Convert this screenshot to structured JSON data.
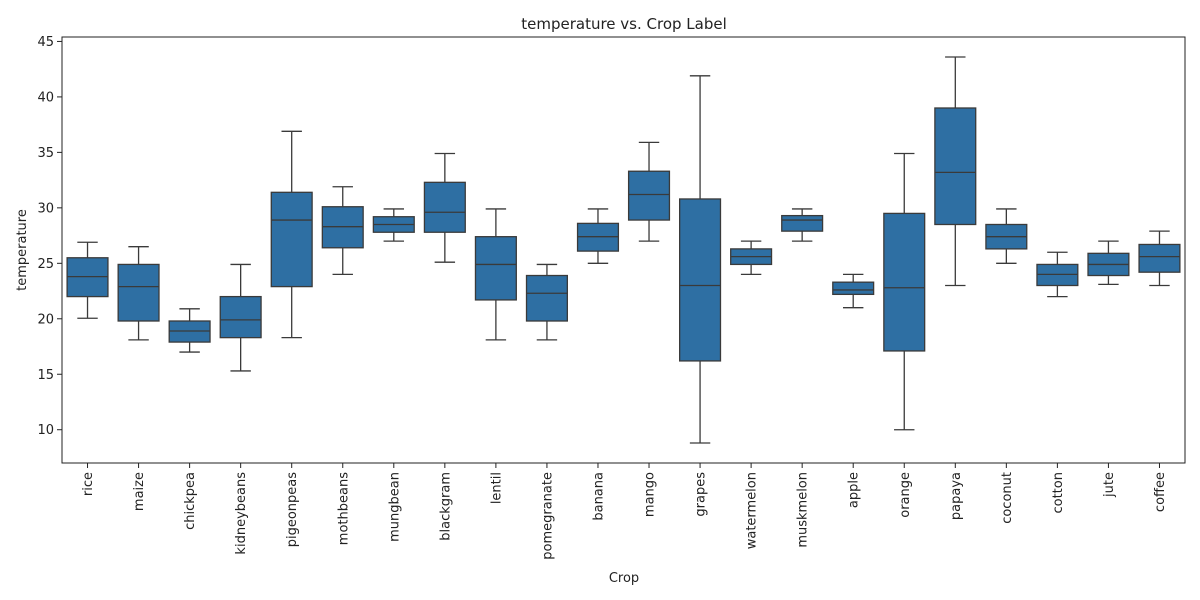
{
  "chart_data": {
    "type": "box",
    "title": "temperature vs. Crop Label",
    "xlabel": "Crop",
    "ylabel": "temperature",
    "ylim": [
      7,
      45.4
    ],
    "yticks": [
      10,
      15,
      20,
      25,
      30,
      35,
      40,
      45
    ],
    "grid": false,
    "box_color": "#2e6fa3",
    "line_color": "#3a3a3a",
    "categories": [
      "rice",
      "maize",
      "chickpea",
      "kidneybeans",
      "pigeonpeas",
      "mothbeans",
      "mungbean",
      "blackgram",
      "lentil",
      "pomegranate",
      "banana",
      "mango",
      "grapes",
      "watermelon",
      "muskmelon",
      "apple",
      "orange",
      "papaya",
      "coconut",
      "cotton",
      "jute",
      "coffee"
    ],
    "boxes": [
      {
        "category": "rice",
        "whisker_low": 20.05,
        "q1": 22.0,
        "median": 23.8,
        "q3": 25.5,
        "whisker_high": 26.9
      },
      {
        "category": "maize",
        "whisker_low": 18.1,
        "q1": 19.8,
        "median": 22.9,
        "q3": 24.9,
        "whisker_high": 26.5
      },
      {
        "category": "chickpea",
        "whisker_low": 17.0,
        "q1": 17.9,
        "median": 18.9,
        "q3": 19.8,
        "whisker_high": 20.9
      },
      {
        "category": "kidneybeans",
        "whisker_low": 15.3,
        "q1": 18.3,
        "median": 19.9,
        "q3": 22.0,
        "whisker_high": 24.9
      },
      {
        "category": "pigeonpeas",
        "whisker_low": 18.3,
        "q1": 22.9,
        "median": 28.9,
        "q3": 31.4,
        "whisker_high": 36.9
      },
      {
        "category": "mothbeans",
        "whisker_low": 24.0,
        "q1": 26.4,
        "median": 28.3,
        "q3": 30.1,
        "whisker_high": 31.9
      },
      {
        "category": "mungbean",
        "whisker_low": 27.0,
        "q1": 27.8,
        "median": 28.5,
        "q3": 29.2,
        "whisker_high": 29.9
      },
      {
        "category": "blackgram",
        "whisker_low": 25.1,
        "q1": 27.8,
        "median": 29.6,
        "q3": 32.3,
        "whisker_high": 34.9
      },
      {
        "category": "lentil",
        "whisker_low": 18.1,
        "q1": 21.7,
        "median": 24.9,
        "q3": 27.4,
        "whisker_high": 29.9
      },
      {
        "category": "pomegranate",
        "whisker_low": 18.1,
        "q1": 19.8,
        "median": 22.3,
        "q3": 23.9,
        "whisker_high": 24.9
      },
      {
        "category": "banana",
        "whisker_low": 25.0,
        "q1": 26.1,
        "median": 27.4,
        "q3": 28.6,
        "whisker_high": 29.9
      },
      {
        "category": "mango",
        "whisker_low": 27.0,
        "q1": 28.9,
        "median": 31.2,
        "q3": 33.3,
        "whisker_high": 35.9
      },
      {
        "category": "grapes",
        "whisker_low": 8.8,
        "q1": 16.2,
        "median": 23.0,
        "q3": 30.8,
        "whisker_high": 41.9
      },
      {
        "category": "watermelon",
        "whisker_low": 24.0,
        "q1": 24.9,
        "median": 25.6,
        "q3": 26.3,
        "whisker_high": 27.0
      },
      {
        "category": "muskmelon",
        "whisker_low": 27.0,
        "q1": 27.9,
        "median": 28.9,
        "q3": 29.3,
        "whisker_high": 29.9
      },
      {
        "category": "apple",
        "whisker_low": 21.0,
        "q1": 22.2,
        "median": 22.6,
        "q3": 23.3,
        "whisker_high": 24.0
      },
      {
        "category": "orange",
        "whisker_low": 10.0,
        "q1": 17.1,
        "median": 22.8,
        "q3": 29.5,
        "whisker_high": 34.9
      },
      {
        "category": "papaya",
        "whisker_low": 23.0,
        "q1": 28.5,
        "median": 33.2,
        "q3": 39.0,
        "whisker_high": 43.6
      },
      {
        "category": "coconut",
        "whisker_low": 25.0,
        "q1": 26.3,
        "median": 27.4,
        "q3": 28.5,
        "whisker_high": 29.9
      },
      {
        "category": "cotton",
        "whisker_low": 22.0,
        "q1": 23.0,
        "median": 24.0,
        "q3": 24.9,
        "whisker_high": 26.0
      },
      {
        "category": "jute",
        "whisker_low": 23.1,
        "q1": 23.9,
        "median": 24.9,
        "q3": 25.9,
        "whisker_high": 27.0
      },
      {
        "category": "coffee",
        "whisker_low": 23.0,
        "q1": 24.2,
        "median": 25.6,
        "q3": 26.7,
        "whisker_high": 27.9
      }
    ]
  }
}
